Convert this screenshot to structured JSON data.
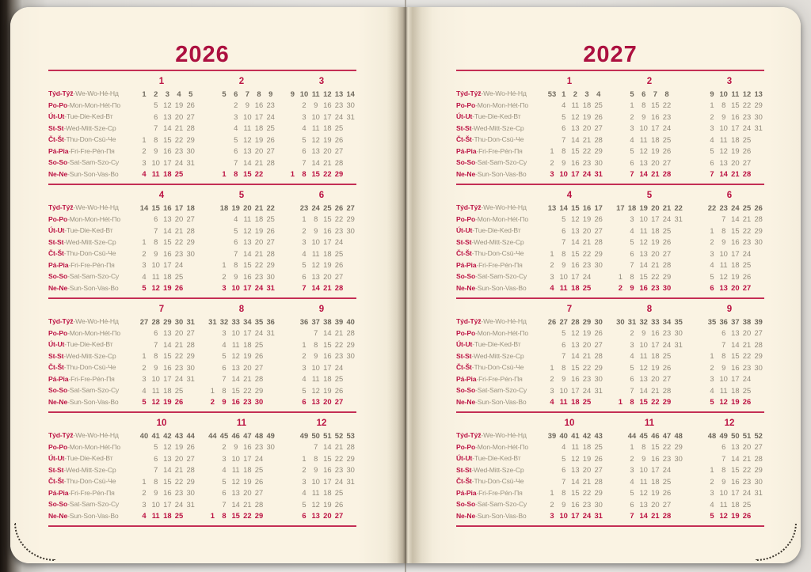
{
  "colors": {
    "accent_red": "#bb1243",
    "rule_red": "#c42e55",
    "week_gray": "#6f695d",
    "day_gray": "#90897a",
    "paper": "#faf3e3"
  },
  "day_labels": [
    {
      "b": "Týd-Týž",
      "r": "-We-Wo-Hé-Нд"
    },
    {
      "b": "Po-Po",
      "r": "-Mon-Mon-Hét-По"
    },
    {
      "b": "Út-Ut",
      "r": "-Tue-Die-Ked-Вт"
    },
    {
      "b": "St-St",
      "r": "-Wed-Mitt-Sze-Ср"
    },
    {
      "b": "Čt-Št",
      "r": "-Thu-Don-Csü-Че"
    },
    {
      "b": "Pá-Pia",
      "r": "-Fri-Fre-Pén-Пя"
    },
    {
      "b": "So-So",
      "r": "-Sat-Sam-Szo-Су"
    },
    {
      "b": "Ne-Ne",
      "r": "-Sun-Son-Vas-Во"
    }
  ],
  "pages": [
    {
      "year": "2026",
      "months": [
        {
          "n": "1",
          "rows": [
            ". 1 2 3 4 5",
            ". . 5 12 19 26",
            ". . 6 13 20 27",
            ". . 7 14 21 28",
            ". 1 8 15 22 29",
            ". 2 9 16 23 30",
            ". 3 10 17 24 31",
            ". 4 11 18 25 ."
          ]
        },
        {
          "n": "2",
          "rows": [
            ". 5 6 7 8 9",
            ". . 2 9 16 23",
            ". . 3 10 17 24",
            ". . 4 11 18 25",
            ". . 5 12 19 26",
            ". . 6 13 20 27",
            ". . 7 14 21 28",
            ". 1 8 15 22 ."
          ]
        },
        {
          "n": "3",
          "rows": [
            "9 10 11 12 13 14",
            ". 2 9 16 23 30",
            ". 3 10 17 24 31",
            ". 4 11 18 25 .",
            ". 5 12 19 26 .",
            ". 6 13 20 27 .",
            ". 7 14 21 28 .",
            "1 8 15 22 29 ."
          ]
        },
        {
          "n": "4",
          "rows": [
            ". 14 15 16 17 18",
            ". . 6 13 20 27",
            ". . 7 14 21 28",
            ". 1 8 15 22 29",
            ". 2 9 16 23 30",
            ". 3 10 17 24 .",
            ". 4 11 18 25 .",
            ". 5 12 19 26 ."
          ]
        },
        {
          "n": "5",
          "rows": [
            ". 18 19 20 21 22",
            ". . 4 11 18 25",
            ". . 5 12 19 26",
            ". . 6 13 20 27",
            ". . 7 14 21 28",
            ". 1 8 15 22 29",
            ". 2 9 16 23 30",
            ". 3 10 17 24 31"
          ]
        },
        {
          "n": "6",
          "rows": [
            ". 23 24 25 26 27",
            ". 1 8 15 22 29",
            ". 2 9 16 23 30",
            ". 3 10 17 24 .",
            ". 4 11 18 25 .",
            ". 5 12 19 26 .",
            ". 6 13 20 27 .",
            ". 7 14 21 28 ."
          ]
        },
        {
          "n": "7",
          "rows": [
            ". 27 28 29 30 31",
            ". . 6 13 20 27",
            ". . 7 14 21 28",
            ". 1 8 15 22 29",
            ". 2 9 16 23 30",
            ". 3 10 17 24 31",
            ". 4 11 18 25 .",
            ". 5 12 19 26 ."
          ]
        },
        {
          "n": "8",
          "rows": [
            "31 32 33 34 35 36",
            ". 3 10 17 24 31",
            ". 4 11 18 25 .",
            ". 5 12 19 26 .",
            ". 6 13 20 27 .",
            ". 7 14 21 28 .",
            "1 8 15 22 29 .",
            "2 9 16 23 30 ."
          ]
        },
        {
          "n": "9",
          "rows": [
            ". 36 37 38 39 40",
            ". . 7 14 21 28",
            ". 1 8 15 22 29",
            ". 2 9 16 23 30",
            ". 3 10 17 24 .",
            ". 4 11 18 25 .",
            ". 5 12 19 26 .",
            ". 6 13 20 27 ."
          ]
        },
        {
          "n": "10",
          "rows": [
            ". 40 41 42 43 44",
            ". . 5 12 19 26",
            ". . 6 13 20 27",
            ". . 7 14 21 28",
            ". 1 8 15 22 29",
            ". 2 9 16 23 30",
            ". 3 10 17 24 31",
            ". 4 11 18 25 ."
          ]
        },
        {
          "n": "11",
          "rows": [
            "44 45 46 47 48 49",
            ". 2 9 16 23 30",
            ". 3 10 17 24 .",
            ". 4 11 18 25 .",
            ". 5 12 19 26 .",
            ". 6 13 20 27 .",
            ". 7 14 21 28 .",
            "1 8 15 22 29 ."
          ]
        },
        {
          "n": "12",
          "rows": [
            ". 49 50 51 52 53",
            ". . 7 14 21 28",
            ". 1 8 15 22 29",
            ". 2 9 16 23 30",
            ". 3 10 17 24 31",
            ". 4 11 18 25 .",
            ". 5 12 19 26 .",
            ". 6 13 20 27 ."
          ]
        }
      ]
    },
    {
      "year": "2027",
      "months": [
        {
          "n": "1",
          "rows": [
            ". 53 1 2 3 4",
            ". . 4 11 18 25",
            ". . 5 12 19 26",
            ". . 6 13 20 27",
            ". . 7 14 21 28",
            ". 1 8 15 22 29",
            ". 2 9 16 23 30",
            ". 3 10 17 24 31"
          ]
        },
        {
          "n": "2",
          "rows": [
            ". 5 6 7 8 .",
            ". 1 8 15 22 .",
            ". 2 9 16 23 .",
            ". 3 10 17 24 .",
            ". 4 11 18 25 .",
            ". 5 12 19 26 .",
            ". 6 13 20 27 .",
            ". 7 14 21 28 ."
          ]
        },
        {
          "n": "3",
          "rows": [
            ". 9 10 11 12 13",
            ". 1 8 15 22 29",
            ". 2 9 16 23 30",
            ". 3 10 17 24 31",
            ". 4 11 18 25 .",
            ". 5 12 19 26 .",
            ". 6 13 20 27 .",
            ". 7 14 21 28 ."
          ]
        },
        {
          "n": "4",
          "rows": [
            ". 13 14 15 16 17",
            ". . 5 12 19 26",
            ". . 6 13 20 27",
            ". . 7 14 21 28",
            ". 1 8 15 22 29",
            ". 2 9 16 23 30",
            ". 3 10 17 24 .",
            ". 4 11 18 25 ."
          ]
        },
        {
          "n": "5",
          "rows": [
            "17 18 19 20 21 22",
            ". 3 10 17 24 31",
            ". 4 11 18 25 .",
            ". 5 12 19 26 .",
            ". 6 13 20 27 .",
            ". 7 14 21 28 .",
            "1 8 15 22 29 .",
            "2 9 16 23 30 ."
          ]
        },
        {
          "n": "6",
          "rows": [
            ". 22 23 24 25 26",
            ". . 7 14 21 28",
            ". 1 8 15 22 29",
            ". 2 9 16 23 30",
            ". 3 10 17 24 .",
            ". 4 11 18 25 .",
            ". 5 12 19 26 .",
            ". 6 13 20 27 ."
          ]
        },
        {
          "n": "7",
          "rows": [
            ". 26 27 28 29 30",
            ". . 5 12 19 26",
            ". . 6 13 20 27",
            ". . 7 14 21 28",
            ". 1 8 15 22 29",
            ". 2 9 16 23 30",
            ". 3 10 17 24 31",
            ". 4 11 18 25 ."
          ]
        },
        {
          "n": "8",
          "rows": [
            "30 31 32 33 34 35",
            ". 2 9 16 23 30",
            ". 3 10 17 24 31",
            ". 4 11 18 25 .",
            ". 5 12 19 26 .",
            ". 6 13 20 27 .",
            ". 7 14 21 28 .",
            "1 8 15 22 29 ."
          ]
        },
        {
          "n": "9",
          "rows": [
            ". 35 36 37 38 39",
            ". . 6 13 20 27",
            ". . 7 14 21 28",
            ". 1 8 15 22 29",
            ". 2 9 16 23 30",
            ". 3 10 17 24 .",
            ". 4 11 18 25 .",
            ". 5 12 19 26 ."
          ]
        },
        {
          "n": "10",
          "rows": [
            ". 39 40 41 42 43",
            ". . 4 11 18 25",
            ". . 5 12 19 26",
            ". . 6 13 20 27",
            ". . 7 14 21 28",
            ". 1 8 15 22 29",
            ". 2 9 16 23 30",
            ". 3 10 17 24 31"
          ]
        },
        {
          "n": "11",
          "rows": [
            ". 44 45 46 47 48",
            ". 1 8 15 22 29",
            ". 2 9 16 23 30",
            ". 3 10 17 24 .",
            ". 4 11 18 25 .",
            ". 5 12 19 26 .",
            ". 6 13 20 27 .",
            ". 7 14 21 28 ."
          ]
        },
        {
          "n": "12",
          "rows": [
            ". 48 49 50 51 52",
            ". . 6 13 20 27",
            ". . 7 14 21 28",
            ". 1 8 15 22 29",
            ". 2 9 16 23 30",
            ". 3 10 17 24 31",
            ". 4 11 18 25 .",
            ". 5 12 19 26 ."
          ]
        }
      ]
    }
  ]
}
